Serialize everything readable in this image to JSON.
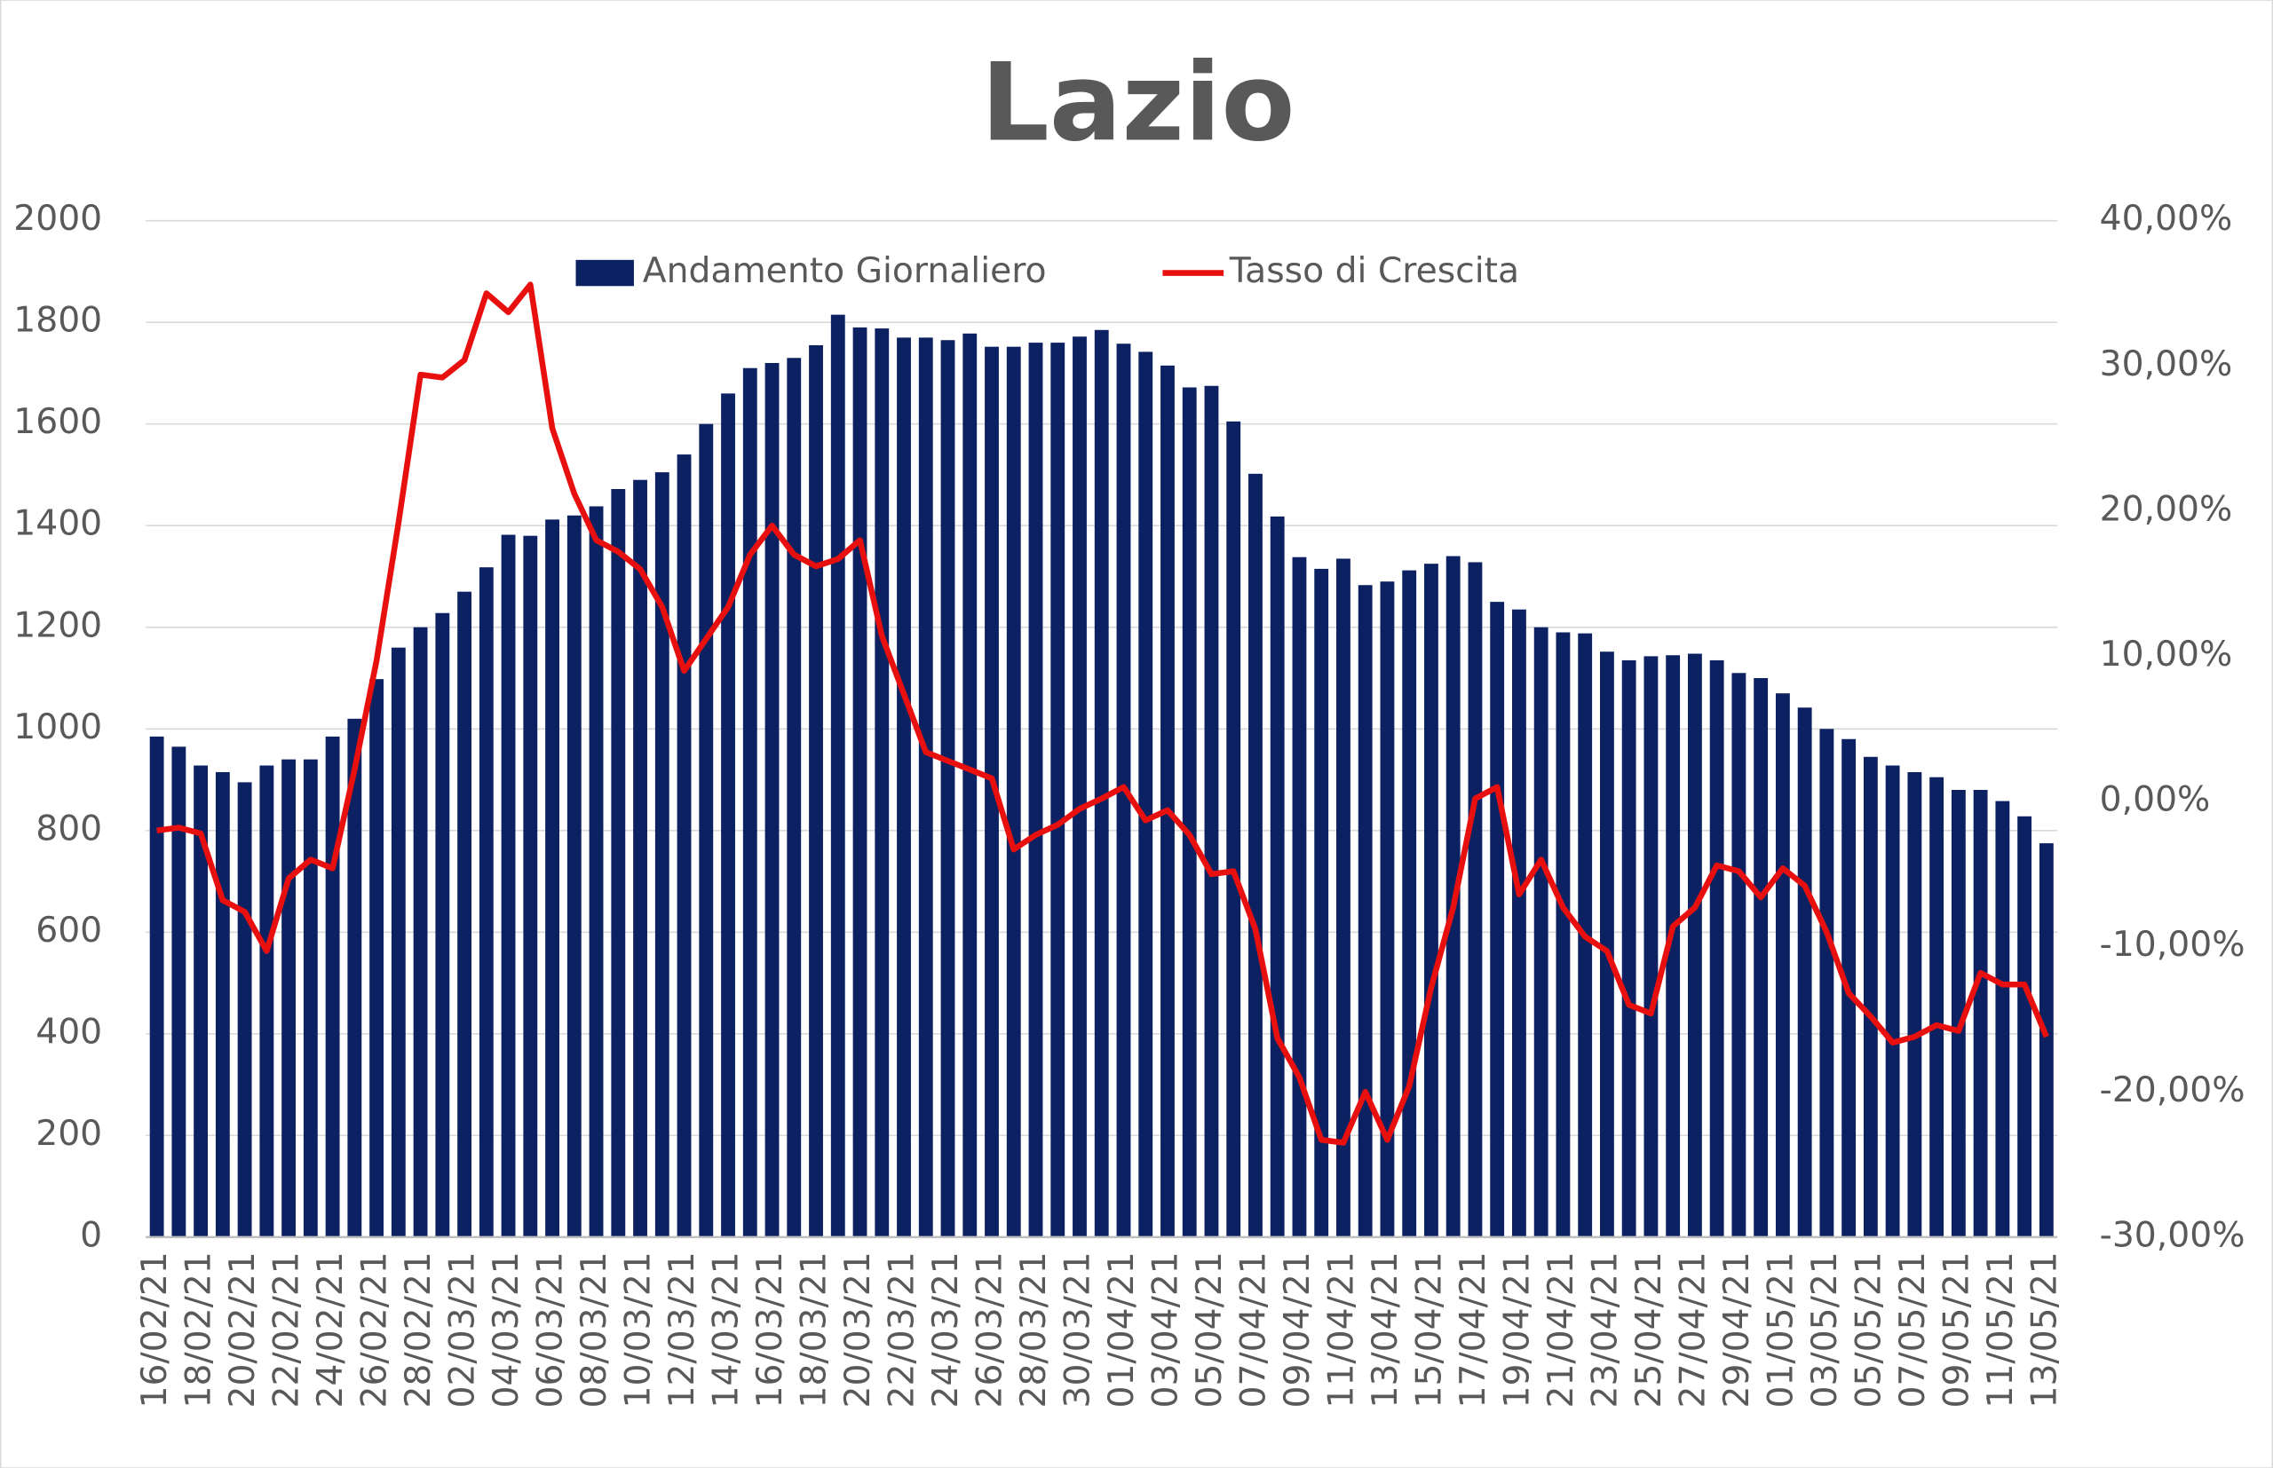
{
  "chart_data": {
    "type": "bar-line",
    "title": "Lazio",
    "categories": [
      "16/02/21",
      null,
      "18/02/21",
      null,
      "20/02/21",
      null,
      "22/02/21",
      null,
      "24/02/21",
      null,
      "26/02/21",
      null,
      "28/02/21",
      null,
      "02/03/21",
      null,
      "04/03/21",
      null,
      "06/03/21",
      null,
      "08/03/21",
      null,
      "10/03/21",
      null,
      "12/03/21",
      null,
      "14/03/21",
      null,
      "16/03/21",
      null,
      "18/03/21",
      null,
      "20/03/21",
      null,
      "22/03/21",
      null,
      "24/03/21",
      null,
      "26/03/21",
      null,
      "28/03/21",
      null,
      "30/03/21",
      null,
      "01/04/21",
      null,
      "03/04/21",
      null,
      "05/04/21",
      null,
      "07/04/21",
      null,
      "09/04/21",
      null,
      "11/04/21",
      null,
      "13/04/21",
      null,
      "15/04/21",
      null,
      "17/04/21",
      null,
      "19/04/21",
      null,
      "21/04/21",
      null,
      "23/04/21",
      null,
      "25/04/21",
      null,
      "27/04/21",
      null,
      "29/04/21",
      null,
      "01/05/21",
      null,
      "03/05/21",
      null,
      "05/05/21",
      null,
      "07/05/21",
      null,
      "09/05/21",
      null,
      "11/05/21",
      null,
      "13/05/21"
    ],
    "series": [
      {
        "name": "Andamento Giornaliero",
        "type": "bar",
        "color": "#0c2161",
        "values": [
          985,
          965,
          928,
          915,
          895,
          928,
          940,
          940,
          985,
          1020,
          1098,
          1160,
          1200,
          1228,
          1270,
          1318,
          1382,
          1380,
          1412,
          1420,
          1438,
          1472,
          1490,
          1505,
          1540,
          1600,
          1660,
          1710,
          1720,
          1730,
          1755,
          1815,
          1790,
          1788,
          1770,
          1770,
          1765,
          1778,
          1752,
          1752,
          1760,
          1760,
          1772,
          1785,
          1758,
          1742,
          1715,
          1672,
          1675,
          1605,
          1502,
          1418,
          1338,
          1315,
          1335,
          1283,
          1290,
          1312,
          1325,
          1340,
          1328,
          1250,
          1235,
          1200,
          1190,
          1188,
          1152,
          1135,
          1143,
          1145,
          1148,
          1135,
          1110,
          1100,
          1070,
          1042,
          1000,
          980,
          945,
          928,
          915,
          905,
          880,
          880,
          858,
          828,
          775
        ]
      },
      {
        "name": "Tasso di Crescita",
        "type": "line",
        "axis": "y2",
        "color": "#e8100f",
        "values": [
          -2,
          -1.8,
          -2.2,
          -6.8,
          -7.6,
          -10.3,
          -5.3,
          -4,
          -4.6,
          2.2,
          9.7,
          19.2,
          29.4,
          29.2,
          30.4,
          35,
          33.7,
          35.6,
          25.7,
          21.2,
          18,
          17.2,
          16,
          13.4,
          9,
          11.2,
          13.4,
          17,
          19,
          17,
          16.2,
          16.7,
          18,
          11.4,
          7.4,
          3.4,
          2.8,
          2.2,
          1.6,
          -3.3,
          -2.3,
          -1.6,
          -0.5,
          0.2,
          1,
          -1.3,
          -0.6,
          -2.3,
          -5,
          -4.8,
          -8.8,
          -16.3,
          -19,
          -23.3,
          -23.5,
          -20,
          -23.3,
          -19.6,
          -12.8,
          -7.3,
          0.2,
          1,
          -6.4,
          -4,
          -7.3,
          -9.3,
          -10.3,
          -14,
          -14.6,
          -8.6,
          -7.3,
          -4.4,
          -4.8,
          -6.6,
          -4.6,
          -5.8,
          -9,
          -13.2,
          -14.8,
          -16.6,
          -16.2,
          -15.4,
          -15.8,
          -11.8,
          -12.6,
          -12.6,
          -16.2
        ]
      }
    ],
    "ylim": [
      0,
      2000
    ],
    "yticks": [
      0,
      200,
      400,
      600,
      800,
      1000,
      1200,
      1400,
      1600,
      1800,
      2000
    ],
    "y2lim": [
      -30,
      40
    ],
    "y2ticks": [
      {
        "value": -30,
        "label": "-30,00%"
      },
      {
        "value": -20,
        "label": "-20,00%"
      },
      {
        "value": -10,
        "label": "-10,00%"
      },
      {
        "value": 0,
        "label": "0,00%"
      },
      {
        "value": 10,
        "label": "10,00%"
      },
      {
        "value": 20,
        "label": "20,00%"
      },
      {
        "value": 30,
        "label": "30,00%"
      },
      {
        "value": 40,
        "label": "40,00%"
      }
    ],
    "grid": true,
    "legend": "top"
  }
}
